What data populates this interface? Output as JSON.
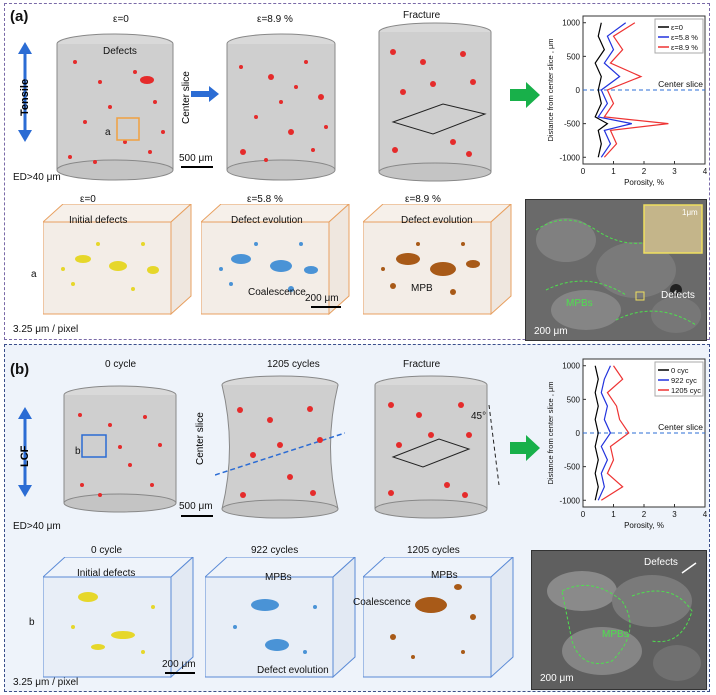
{
  "panel_a": {
    "label": "(a)",
    "loading": "Tensile",
    "cyl_titles": [
      "ε=0",
      "ε=8.9 %",
      "Fracture"
    ],
    "defects_label": "Defects",
    "sub_box_label": "a",
    "center_slice": "Center slice",
    "scale_500": "500 μm",
    "ed_text": "ED>40 μm",
    "cube_titles": [
      "ε=0",
      "ε=5.8 %",
      "ε=8.9 %"
    ],
    "cube_annots": [
      "Initial defects",
      "Defect evolution",
      "Defect evolution",
      "Coalescence",
      "MPB"
    ],
    "cube_row_label": "a",
    "scale_200": "200 μm",
    "pixel_text": "3.25 μm / pixel",
    "sem_labels": [
      "1μm",
      "MPBs",
      "Defects",
      "200 μm"
    ]
  },
  "panel_b": {
    "label": "(b)",
    "loading": "LCF",
    "cyl_titles": [
      "0 cycle",
      "1205 cycles",
      "Fracture"
    ],
    "sub_box_label": "b",
    "center_slice": "Center slice",
    "angle": "45°",
    "scale_500": "500 μm",
    "ed_text": "ED>40 μm",
    "cube_titles": [
      "0 cycle",
      "922 cycles",
      "1205 cycles"
    ],
    "cube_annots": [
      "Initial defects",
      "MPBs",
      "Defect evolution",
      "MPBs",
      "Coalescence"
    ],
    "cube_row_label": "b",
    "scale_200": "200 μm",
    "pixel_text": "3.25 μm / pixel",
    "sem_labels": [
      "Defects",
      "MPBs",
      "200 μm"
    ]
  },
  "chart_data": [
    {
      "type": "line",
      "xlabel": "Porosity, %",
      "ylabel": "Distance from center slice , μm",
      "xlim": [
        0,
        4
      ],
      "ylim": [
        -1100,
        1100
      ],
      "xticks": [
        0,
        1,
        2,
        3,
        4
      ],
      "yticks": [
        -1000,
        -500,
        0,
        500,
        1000
      ],
      "annotation": "Center slice",
      "series": [
        {
          "name": "ε=0",
          "color": "#000000",
          "y": [
            -1000,
            -800,
            -600,
            -500,
            -400,
            -200,
            0,
            200,
            400,
            600,
            800,
            1000
          ],
          "x": [
            0.5,
            0.6,
            0.5,
            0.8,
            0.4,
            0.6,
            0.5,
            0.6,
            0.4,
            0.7,
            0.5,
            0.6
          ]
        },
        {
          "name": "ε=5.8 %",
          "color": "#2233dd",
          "y": [
            -1000,
            -800,
            -600,
            -500,
            -400,
            -200,
            0,
            200,
            400,
            600,
            800,
            1000
          ],
          "x": [
            0.6,
            0.9,
            0.7,
            1.6,
            0.5,
            0.8,
            0.6,
            1.2,
            0.7,
            1.0,
            0.8,
            1.4
          ]
        },
        {
          "name": "ε=8.9 %",
          "color": "#ee3333",
          "y": [
            -1000,
            -800,
            -600,
            -500,
            -400,
            -200,
            0,
            200,
            400,
            600,
            800,
            1000
          ],
          "x": [
            0.7,
            1.1,
            0.9,
            2.8,
            0.7,
            1.0,
            0.8,
            1.9,
            0.9,
            1.3,
            1.0,
            1.7
          ]
        }
      ]
    },
    {
      "type": "line",
      "xlabel": "Porosity, %",
      "ylabel": "Distance from center slice , μm",
      "xlim": [
        0,
        4
      ],
      "ylim": [
        -1100,
        1100
      ],
      "xticks": [
        0,
        1,
        2,
        3,
        4
      ],
      "yticks": [
        -1000,
        -500,
        0,
        500,
        1000
      ],
      "annotation": "Center slice",
      "series": [
        {
          "name": "0 cyc",
          "color": "#000000",
          "y": [
            -1000,
            -800,
            -600,
            -400,
            -200,
            0,
            200,
            400,
            600,
            800,
            1000
          ],
          "x": [
            0.4,
            0.5,
            0.4,
            0.5,
            0.4,
            0.5,
            0.4,
            0.5,
            0.4,
            0.5,
            0.4
          ]
        },
        {
          "name": "922 cyc",
          "color": "#2233dd",
          "y": [
            -1000,
            -800,
            -600,
            -400,
            -200,
            0,
            200,
            400,
            600,
            800,
            1000
          ],
          "x": [
            0.5,
            0.7,
            0.6,
            0.8,
            0.6,
            0.9,
            0.7,
            0.8,
            0.6,
            0.7,
            0.9
          ]
        },
        {
          "name": "1205 cyc",
          "color": "#ee3333",
          "y": [
            -1000,
            -800,
            -600,
            -400,
            -200,
            0,
            200,
            400,
            600,
            800,
            1000
          ],
          "x": [
            0.6,
            1.3,
            0.8,
            1.0,
            0.9,
            1.5,
            1.2,
            1.1,
            0.8,
            1.3,
            1.0
          ]
        }
      ]
    }
  ]
}
